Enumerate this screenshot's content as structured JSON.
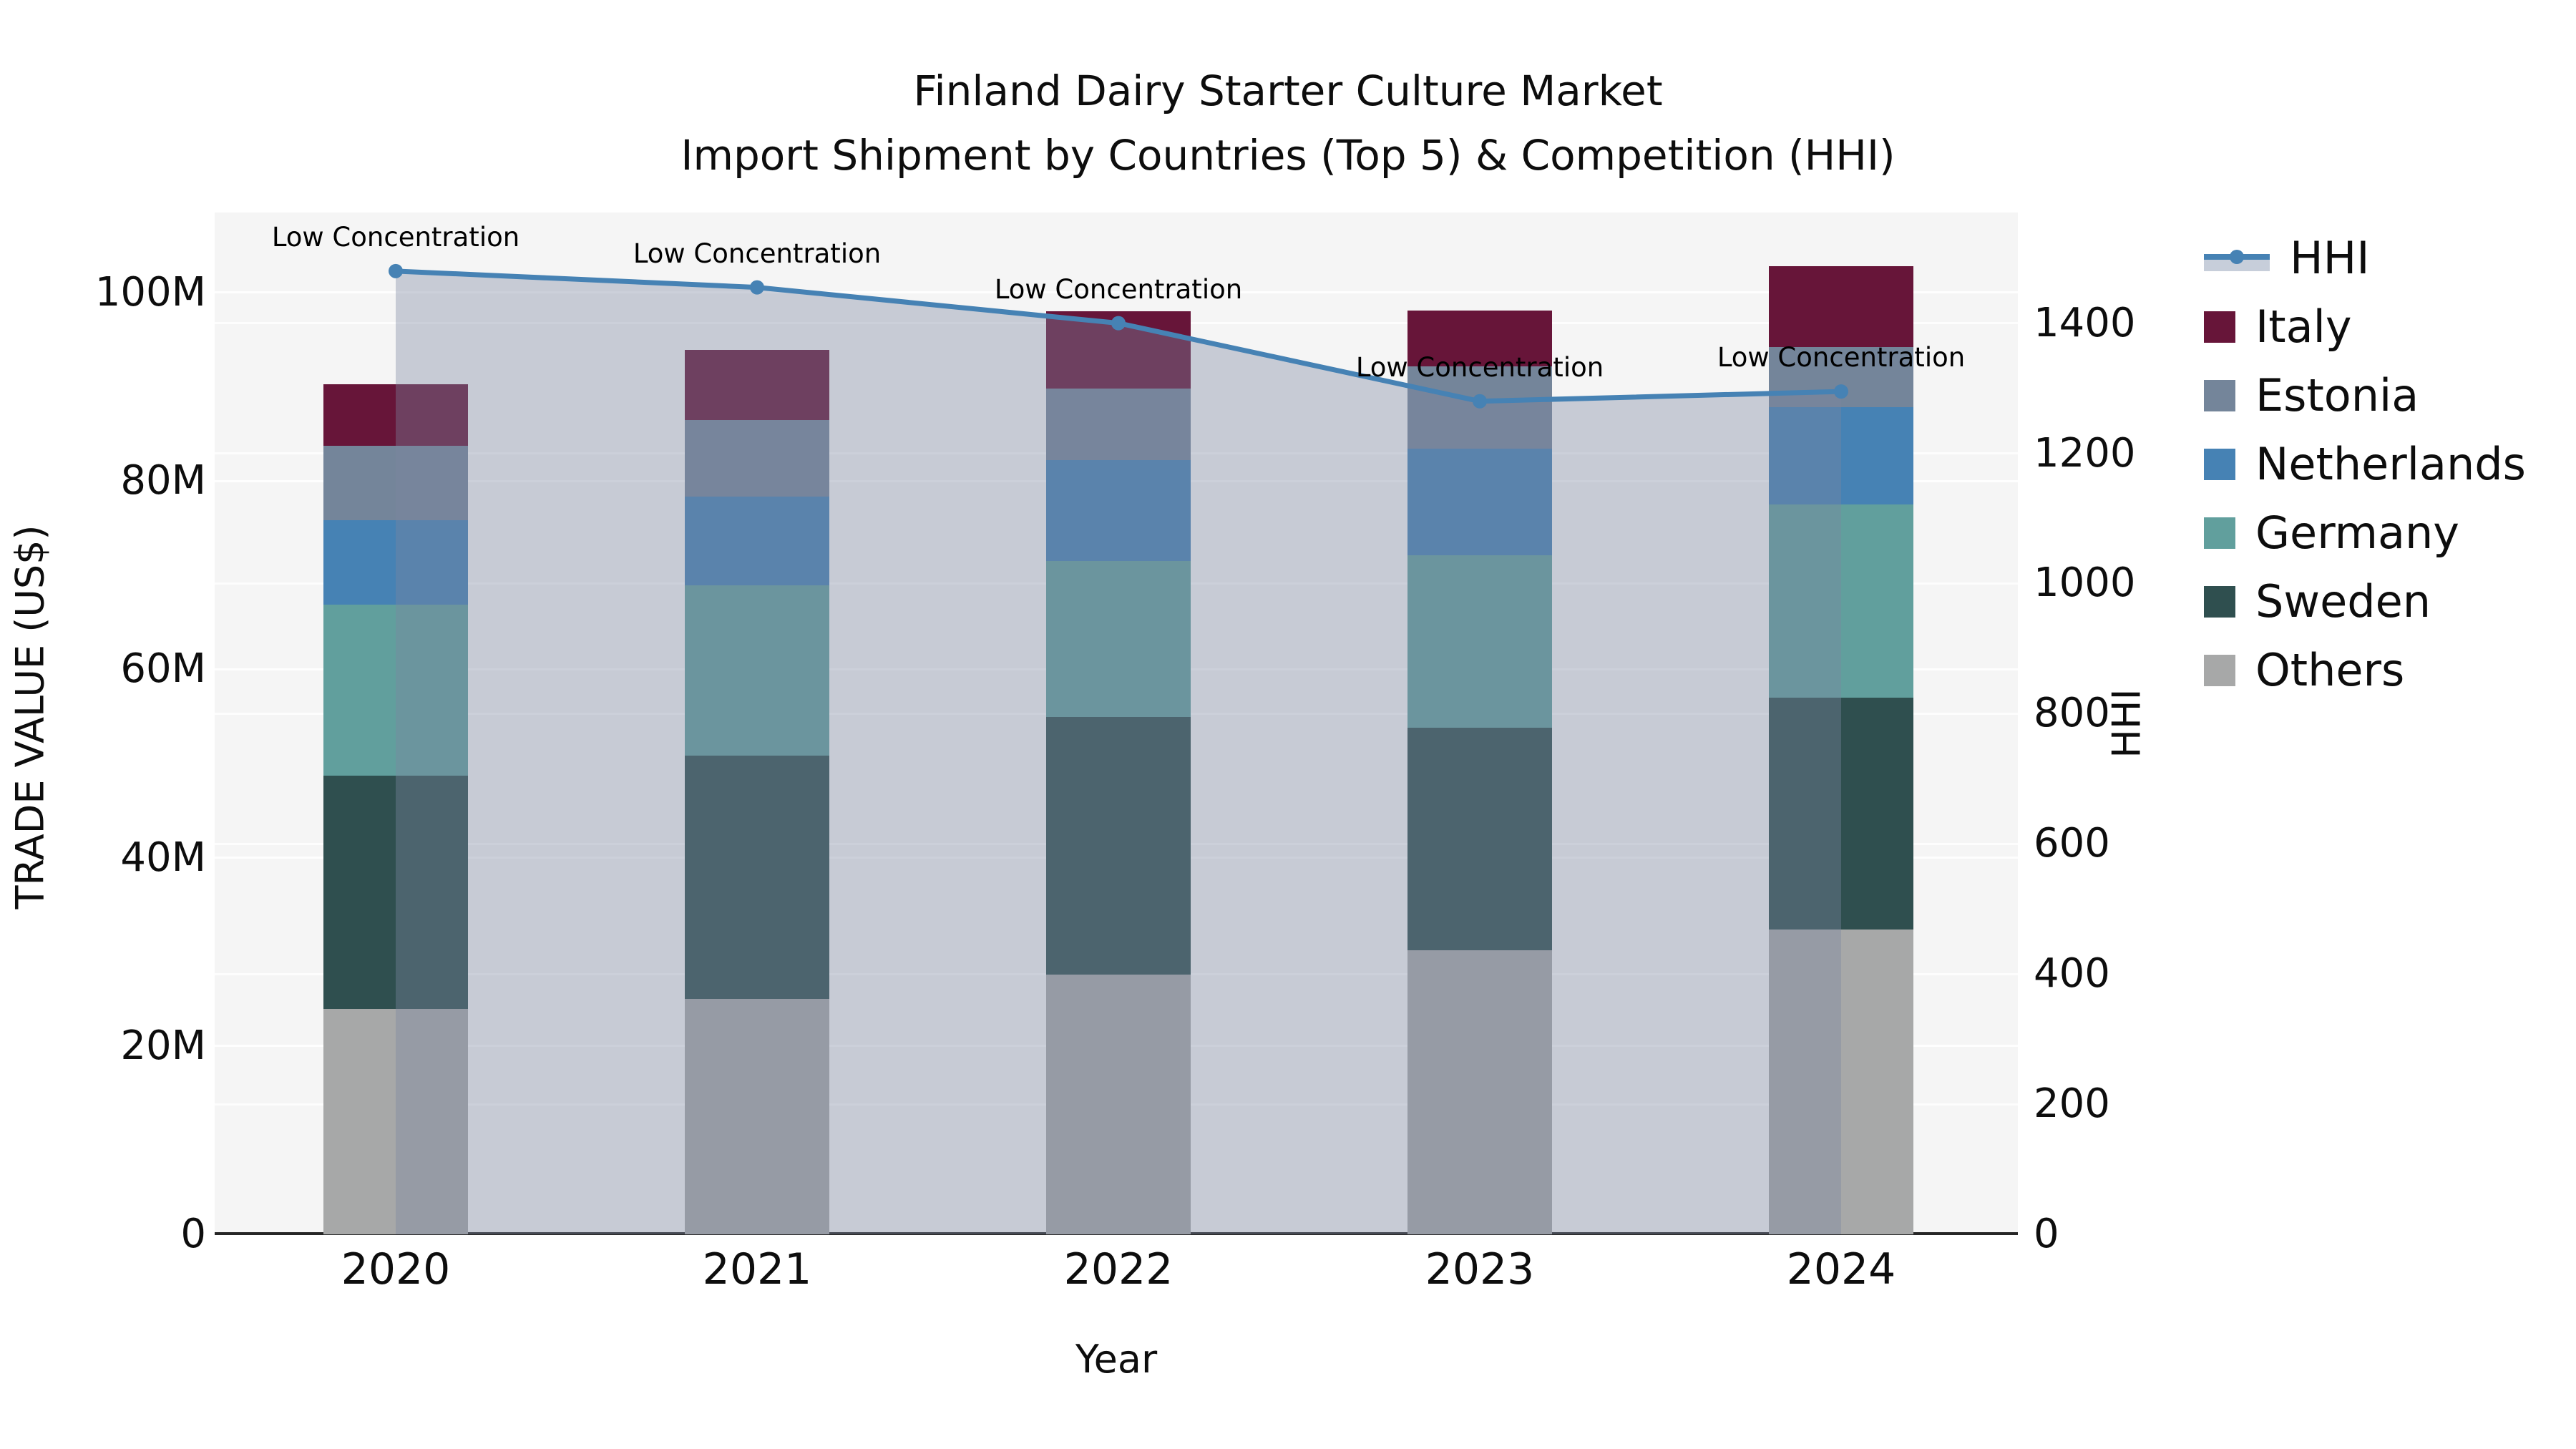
{
  "title": {
    "line1": "Finland Dairy Starter Culture Market",
    "line2": "Import Shipment by Countries (Top 5) & Competition (HHI)"
  },
  "colors": {
    "plot_bg": "#f5f5f5",
    "gridline": "#ffffff",
    "axis_line": "#262626",
    "hhi_line": "#4682b4",
    "hhi_area_overlay": "rgba(123,133,160,0.38)",
    "legend_band": "#c7ceda"
  },
  "chart_data": {
    "type": "bar",
    "variant": "stacked-bars-with-line-area",
    "title": "Finland Dairy Starter Culture Market — Import Shipment by Countries (Top 5) & Competition (HHI)",
    "xlabel": "Year",
    "ylabel_left": "TRADE VALUE (US$)",
    "ylabel_right": "HHI",
    "categories": [
      "2020",
      "2021",
      "2022",
      "2023",
      "2024"
    ],
    "series": [
      {
        "name": "Others",
        "color": "#a7a8a8",
        "values": [
          23.9,
          25.0,
          27.6,
          30.2,
          32.4
        ]
      },
      {
        "name": "Sweden",
        "color": "#2f4f4f",
        "values": [
          24.8,
          25.8,
          27.3,
          23.6,
          24.6
        ]
      },
      {
        "name": "Germany",
        "color": "#619f9d",
        "values": [
          18.2,
          18.1,
          16.6,
          18.3,
          20.5
        ]
      },
      {
        "name": "Netherlands",
        "color": "#4682b4",
        "values": [
          8.9,
          9.4,
          10.7,
          11.3,
          10.3
        ]
      },
      {
        "name": "Estonia",
        "color": "#74859a",
        "values": [
          7.9,
          8.2,
          7.6,
          8.8,
          6.4
        ]
      },
      {
        "name": "Italy",
        "color": "#671539",
        "values": [
          6.6,
          7.4,
          8.2,
          5.9,
          8.6
        ]
      }
    ],
    "line": {
      "name": "HHI",
      "axis": "right",
      "color": "#4682b4",
      "values": [
        1480,
        1455,
        1400,
        1280,
        1295
      ],
      "point_annotations": [
        "Low Concentration",
        "Low Concentration",
        "Low Concentration",
        "Low Concentration",
        "Low Concentration"
      ]
    },
    "ylim_left": [
      0,
      108.5
    ],
    "ylim_right": [
      0,
      1570
    ],
    "yticks_left": [
      {
        "v": 0,
        "label": "0"
      },
      {
        "v": 20,
        "label": "20M"
      },
      {
        "v": 40,
        "label": "40M"
      },
      {
        "v": 60,
        "label": "60M"
      },
      {
        "v": 80,
        "label": "80M"
      },
      {
        "v": 100,
        "label": "100M"
      }
    ],
    "yticks_right": [
      {
        "v": 0,
        "label": "0"
      },
      {
        "v": 200,
        "label": "200"
      },
      {
        "v": 400,
        "label": "400"
      },
      {
        "v": 600,
        "label": "600"
      },
      {
        "v": 800,
        "label": "800"
      },
      {
        "v": 1000,
        "label": "1000"
      },
      {
        "v": 1200,
        "label": "1200"
      },
      {
        "v": 1400,
        "label": "1400"
      }
    ],
    "grid": true,
    "legend_position": "right",
    "legend_items": [
      "HHI",
      "Italy",
      "Estonia",
      "Netherlands",
      "Germany",
      "Sweden",
      "Others"
    ]
  }
}
